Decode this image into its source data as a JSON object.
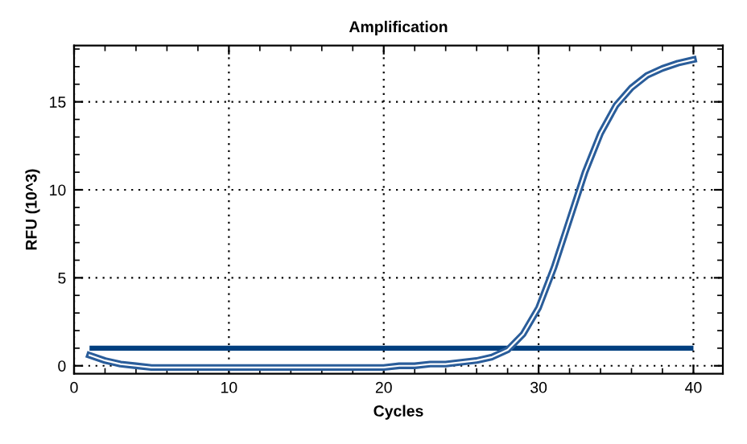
{
  "chart_data": {
    "type": "line",
    "title": "Amplification",
    "xlabel": "Cycles",
    "ylabel": "RFU (10^3)",
    "x": [
      1,
      2,
      3,
      4,
      5,
      6,
      7,
      8,
      9,
      10,
      11,
      12,
      13,
      14,
      15,
      16,
      17,
      18,
      19,
      20,
      21,
      22,
      23,
      24,
      25,
      26,
      27,
      28,
      29,
      30,
      31,
      32,
      33,
      34,
      35,
      36,
      37,
      38,
      39,
      40
    ],
    "series": [
      {
        "color": "#2a5d9a",
        "values": [
          0.6,
          0.3,
          0.1,
          0,
          -0.1,
          -0.1,
          -0.1,
          -0.1,
          -0.1,
          -0.1,
          -0.1,
          -0.1,
          -0.1,
          -0.1,
          -0.1,
          -0.1,
          -0.1,
          -0.1,
          -0.1,
          -0.1,
          0,
          0,
          0.1,
          0.1,
          0.2,
          0.3,
          0.5,
          0.9,
          1.8,
          3.3,
          5.6,
          8.3,
          11.0,
          13.2,
          14.8,
          15.8,
          16.5,
          16.9,
          17.2,
          17.4
        ]
      }
    ],
    "ref_lines": [
      {
        "axis": "y",
        "value": 1.0,
        "color": "#003f7f"
      }
    ],
    "xlim": [
      0,
      41.9
    ],
    "ylim": [
      -0.45,
      18.2
    ],
    "xticks": [
      0,
      10,
      20,
      30,
      40
    ],
    "yticks": [
      0,
      5,
      10,
      15
    ],
    "grid": true,
    "marker": "none",
    "line_style": "solid"
  }
}
